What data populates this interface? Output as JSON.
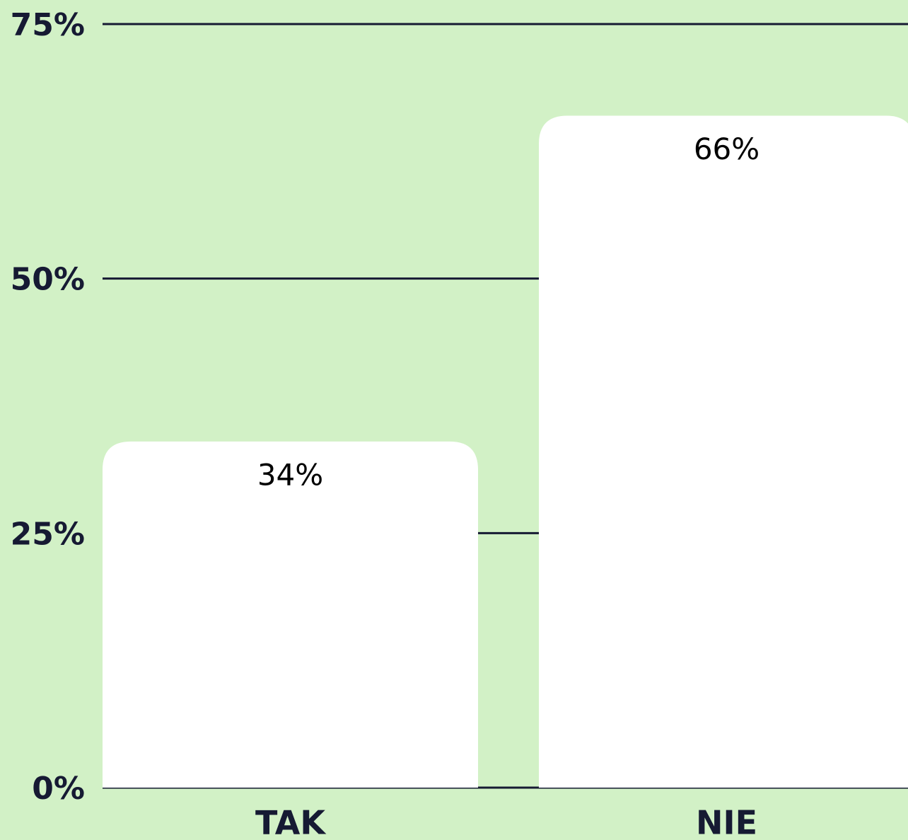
{
  "chart_data": {
    "type": "bar",
    "categories": [
      "TAK",
      "NIE"
    ],
    "values": [
      34,
      66
    ],
    "value_labels": [
      "34%",
      "66%"
    ],
    "color": "#ffffff",
    "background": "#d2f1c6",
    "ylim": [
      0,
      75
    ],
    "yticks": [
      {
        "value": 0,
        "label": "0%"
      },
      {
        "value": 25,
        "label": "25%"
      },
      {
        "value": 50,
        "label": "50%"
      },
      {
        "value": 75,
        "label": "75%"
      }
    ],
    "grid": true
  }
}
